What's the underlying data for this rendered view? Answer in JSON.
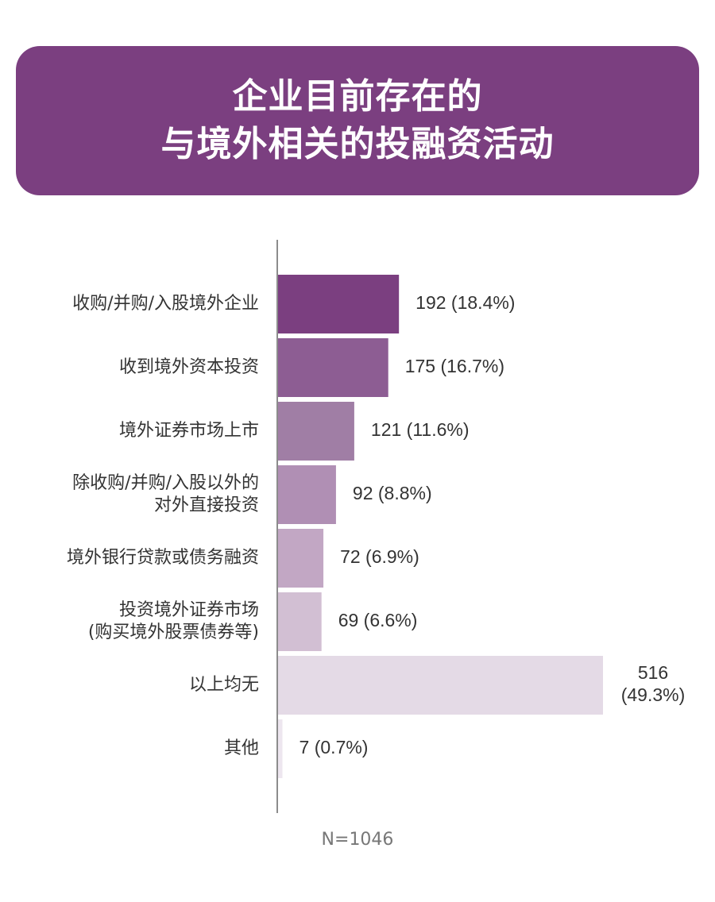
{
  "header": {
    "title_lines": [
      "企业目前存在的",
      "与境外相关的投融资活动"
    ]
  },
  "chart_data": {
    "type": "bar",
    "orientation": "horizontal",
    "title": "企业目前存在的与境外相关的投融资活动",
    "xlabel": "",
    "ylabel": "",
    "grid": false,
    "legend": "none",
    "xlim": [
      0,
      516
    ],
    "categories": [
      [
        "收购/并购/入股境外企业"
      ],
      [
        "收到境外资本投资"
      ],
      [
        "境外证券市场上市"
      ],
      [
        "除收购/并购/入股以外的",
        "对外直接投资"
      ],
      [
        "境外银行贷款或债务融资"
      ],
      [
        "投资境外证券市场",
        "(购买境外股票债券等)"
      ],
      [
        "以上均无"
      ],
      [
        "其他"
      ]
    ],
    "values": [
      192,
      175,
      121,
      92,
      72,
      69,
      516,
      7
    ],
    "data_labels": [
      [
        "192 (18.4%)"
      ],
      [
        "175 (16.7%)"
      ],
      [
        "121 (11.6%)"
      ],
      [
        "92 (8.8%)"
      ],
      [
        "72 (6.9%)"
      ],
      [
        "69 (6.6%)"
      ],
      [
        "516",
        "(49.3%)"
      ],
      [
        "7 (0.7%)"
      ]
    ],
    "colors": [
      "#7b3f80",
      "#8d5d93",
      "#a07ea5",
      "#b08fb4",
      "#c2a7c4",
      "#d2bfd3",
      "#e4dae6",
      "#ede6ef"
    ],
    "axis_color": "#666666",
    "label_color": "#333333"
  },
  "footnote": "N=1046"
}
